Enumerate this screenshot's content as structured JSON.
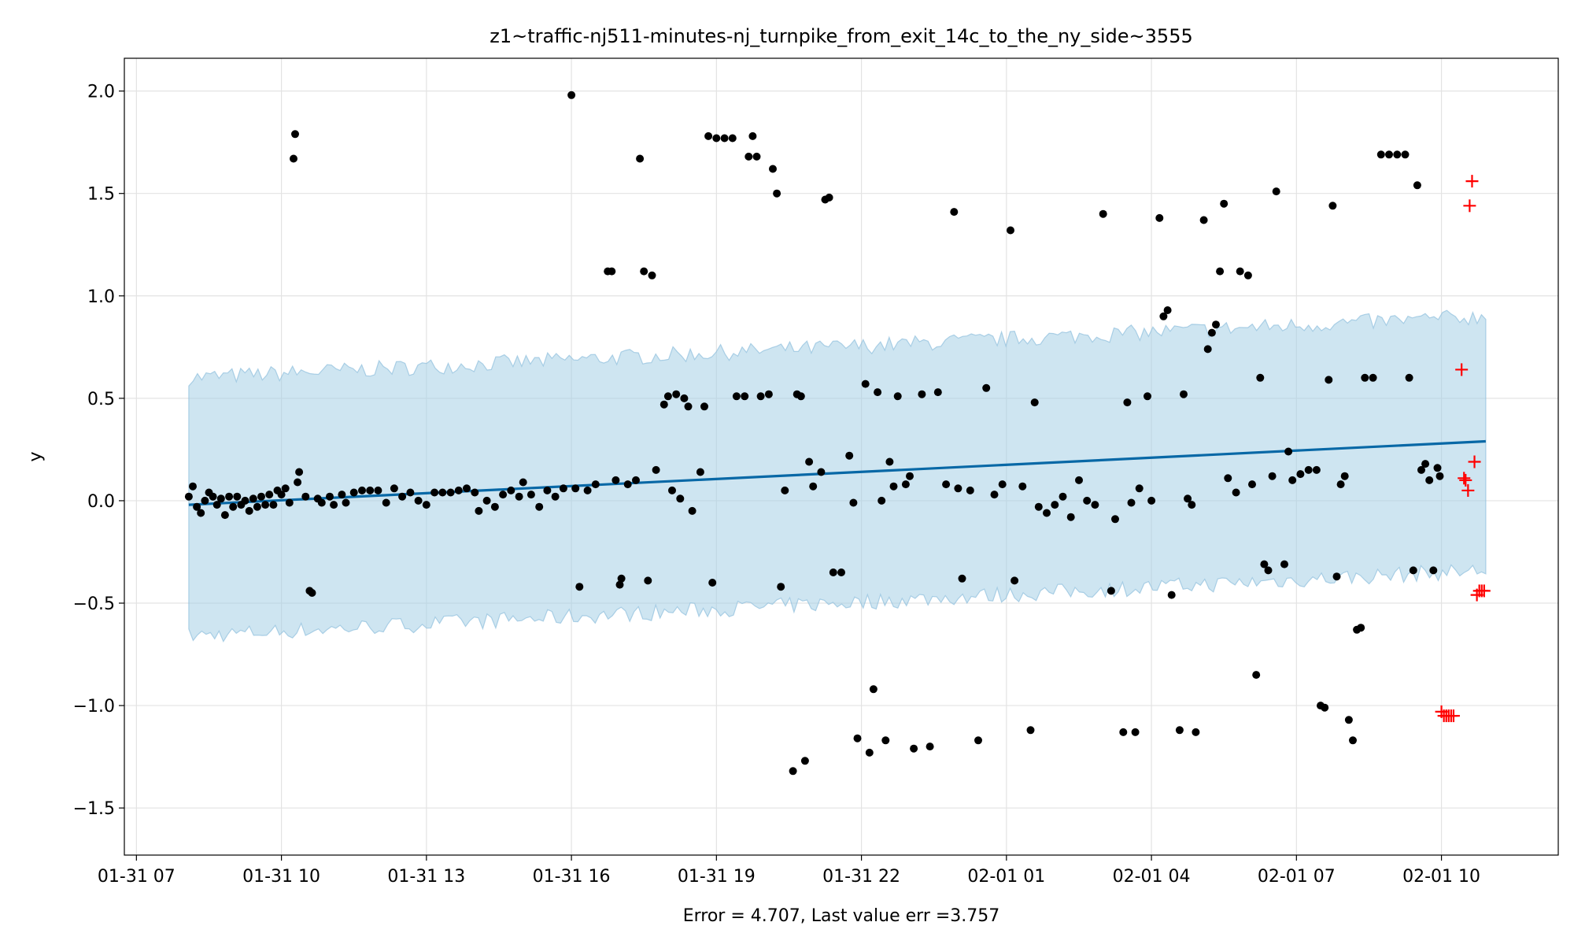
{
  "chart_data": {
    "type": "scatter",
    "title": "z1~traffic-nj511-minutes-nj_turnpike_from_exit_14c_to_the_ny_side~3555",
    "xlabel": "Error = 4.707, Last value err =3.757",
    "ylabel": "y",
    "ylim": [
      -1.73,
      2.16
    ],
    "xlim": [
      "01-31 06:45",
      "02-01 12:25"
    ],
    "grid": true,
    "x_ticks": [
      "01-31 07",
      "01-31 10",
      "01-31 13",
      "01-31 16",
      "01-31 19",
      "01-31 22",
      "02-01 01",
      "02-01 04",
      "02-01 07",
      "02-01 10"
    ],
    "x_tick_times": [
      "01-31 07:00",
      "01-31 10:00",
      "01-31 13:00",
      "01-31 16:00",
      "01-31 19:00",
      "01-31 22:00",
      "02-01 01:00",
      "02-01 04:00",
      "02-01 07:00",
      "02-01 10:00"
    ],
    "y_ticks": [
      2.0,
      1.5,
      1.0,
      0.5,
      0.0,
      -0.5,
      -1.0,
      -1.5
    ],
    "y_tick_labels": [
      "2.0",
      "1.5",
      "1.0",
      "0.5",
      "0.0",
      "−0.5",
      "−1.0",
      "−1.5"
    ],
    "colors": {
      "band": "#a6cfe6",
      "band_edge": "#8fbfdd",
      "trend": "#0868a6",
      "points": "#000000",
      "future": "#ff0000"
    },
    "forecast": {
      "start": "01-31 08:05",
      "end": "02-01 10:55",
      "trend_start": -0.02,
      "trend_end": 0.29,
      "upper_start": 0.6,
      "upper_end": 0.9,
      "lower_start": -0.66,
      "lower_end": -0.34
    },
    "points": [
      [
        "01-31 08:05",
        0.02
      ],
      [
        "01-31 08:10",
        0.07
      ],
      [
        "01-31 08:15",
        -0.03
      ],
      [
        "01-31 08:20",
        -0.06
      ],
      [
        "01-31 08:25",
        0.0
      ],
      [
        "01-31 08:30",
        0.04
      ],
      [
        "01-31 08:35",
        0.02
      ],
      [
        "01-31 08:40",
        -0.02
      ],
      [
        "01-31 08:45",
        0.01
      ],
      [
        "01-31 08:50",
        -0.07
      ],
      [
        "01-31 08:55",
        0.02
      ],
      [
        "01-31 09:00",
        -0.03
      ],
      [
        "01-31 09:05",
        0.02
      ],
      [
        "01-31 09:10",
        -0.02
      ],
      [
        "01-31 09:15",
        0.0
      ],
      [
        "01-31 09:20",
        -0.05
      ],
      [
        "01-31 09:25",
        0.01
      ],
      [
        "01-31 09:30",
        -0.03
      ],
      [
        "01-31 09:35",
        0.02
      ],
      [
        "01-31 09:40",
        -0.02
      ],
      [
        "01-31 09:45",
        0.03
      ],
      [
        "01-31 09:50",
        -0.02
      ],
      [
        "01-31 09:55",
        0.05
      ],
      [
        "01-31 10:00",
        0.03
      ],
      [
        "01-31 10:05",
        0.06
      ],
      [
        "01-31 10:10",
        -0.01
      ],
      [
        "01-31 10:15",
        1.67
      ],
      [
        "01-31 10:17",
        1.79
      ],
      [
        "01-31 10:20",
        0.09
      ],
      [
        "01-31 10:22",
        0.14
      ],
      [
        "01-31 10:30",
        0.02
      ],
      [
        "01-31 10:35",
        -0.44
      ],
      [
        "01-31 10:38",
        -0.45
      ],
      [
        "01-31 10:45",
        0.01
      ],
      [
        "01-31 10:50",
        -0.01
      ],
      [
        "01-31 11:00",
        0.02
      ],
      [
        "01-31 11:05",
        -0.02
      ],
      [
        "01-31 11:15",
        0.03
      ],
      [
        "01-31 11:20",
        -0.01
      ],
      [
        "01-31 11:30",
        0.04
      ],
      [
        "01-31 11:40",
        0.05
      ],
      [
        "01-31 11:50",
        0.05
      ],
      [
        "01-31 12:00",
        0.05
      ],
      [
        "01-31 12:10",
        -0.01
      ],
      [
        "01-31 12:20",
        0.06
      ],
      [
        "01-31 12:30",
        0.02
      ],
      [
        "01-31 12:40",
        0.04
      ],
      [
        "01-31 12:50",
        0.0
      ],
      [
        "01-31 13:00",
        -0.02
      ],
      [
        "01-31 13:10",
        0.04
      ],
      [
        "01-31 13:20",
        0.04
      ],
      [
        "01-31 13:30",
        0.04
      ],
      [
        "01-31 13:40",
        0.05
      ],
      [
        "01-31 13:50",
        0.06
      ],
      [
        "01-31 14:00",
        0.04
      ],
      [
        "01-31 14:05",
        -0.05
      ],
      [
        "01-31 14:15",
        0.0
      ],
      [
        "01-31 14:25",
        -0.03
      ],
      [
        "01-31 14:35",
        0.03
      ],
      [
        "01-31 14:45",
        0.05
      ],
      [
        "01-31 14:55",
        0.02
      ],
      [
        "01-31 15:00",
        0.09
      ],
      [
        "01-31 15:10",
        0.03
      ],
      [
        "01-31 15:20",
        -0.03
      ],
      [
        "01-31 15:30",
        0.05
      ],
      [
        "01-31 15:40",
        0.02
      ],
      [
        "01-31 15:50",
        0.06
      ],
      [
        "01-31 16:00",
        1.98
      ],
      [
        "01-31 16:05",
        0.06
      ],
      [
        "01-31 16:10",
        -0.42
      ],
      [
        "01-31 16:20",
        0.05
      ],
      [
        "01-31 16:30",
        0.08
      ],
      [
        "01-31 16:45",
        1.12
      ],
      [
        "01-31 16:50",
        1.12
      ],
      [
        "01-31 16:55",
        0.1
      ],
      [
        "01-31 17:00",
        -0.41
      ],
      [
        "01-31 17:02",
        -0.38
      ],
      [
        "01-31 17:10",
        0.08
      ],
      [
        "01-31 17:20",
        0.1
      ],
      [
        "01-31 17:25",
        1.67
      ],
      [
        "01-31 17:30",
        1.12
      ],
      [
        "01-31 17:35",
        -0.39
      ],
      [
        "01-31 17:40",
        1.1
      ],
      [
        "01-31 17:45",
        0.15
      ],
      [
        "01-31 17:55",
        0.47
      ],
      [
        "01-31 18:00",
        0.51
      ],
      [
        "01-31 18:05",
        0.05
      ],
      [
        "01-31 18:10",
        0.52
      ],
      [
        "01-31 18:15",
        0.01
      ],
      [
        "01-31 18:20",
        0.5
      ],
      [
        "01-31 18:25",
        0.46
      ],
      [
        "01-31 18:30",
        -0.05
      ],
      [
        "01-31 18:40",
        0.14
      ],
      [
        "01-31 18:45",
        0.46
      ],
      [
        "01-31 18:50",
        1.78
      ],
      [
        "01-31 18:55",
        -0.4
      ],
      [
        "01-31 19:00",
        1.77
      ],
      [
        "01-31 19:10",
        1.77
      ],
      [
        "01-31 19:20",
        1.77
      ],
      [
        "01-31 19:25",
        0.51
      ],
      [
        "01-31 19:35",
        0.51
      ],
      [
        "01-31 19:40",
        1.68
      ],
      [
        "01-31 19:45",
        1.78
      ],
      [
        "01-31 19:50",
        1.68
      ],
      [
        "01-31 19:55",
        0.51
      ],
      [
        "01-31 20:05",
        0.52
      ],
      [
        "01-31 20:10",
        1.62
      ],
      [
        "01-31 20:15",
        1.5
      ],
      [
        "01-31 20:20",
        -0.42
      ],
      [
        "01-31 20:25",
        0.05
      ],
      [
        "01-31 20:35",
        -1.32
      ],
      [
        "01-31 20:40",
        0.52
      ],
      [
        "01-31 20:45",
        0.51
      ],
      [
        "01-31 20:50",
        -1.27
      ],
      [
        "01-31 20:55",
        0.19
      ],
      [
        "01-31 21:00",
        0.07
      ],
      [
        "01-31 21:10",
        0.14
      ],
      [
        "01-31 21:15",
        1.47
      ],
      [
        "01-31 21:20",
        1.48
      ],
      [
        "01-31 21:25",
        -0.35
      ],
      [
        "01-31 21:35",
        -0.35
      ],
      [
        "01-31 21:45",
        0.22
      ],
      [
        "01-31 21:50",
        -0.01
      ],
      [
        "01-31 21:55",
        -1.16
      ],
      [
        "01-31 22:05",
        0.57
      ],
      [
        "01-31 22:10",
        -1.23
      ],
      [
        "01-31 22:15",
        -0.92
      ],
      [
        "01-31 22:20",
        0.53
      ],
      [
        "01-31 22:25",
        0.0
      ],
      [
        "01-31 22:30",
        -1.17
      ],
      [
        "01-31 22:35",
        0.19
      ],
      [
        "01-31 22:40",
        0.07
      ],
      [
        "01-31 22:45",
        0.51
      ],
      [
        "01-31 22:55",
        0.08
      ],
      [
        "01-31 23:00",
        0.12
      ],
      [
        "01-31 23:05",
        -1.21
      ],
      [
        "01-31 23:15",
        0.52
      ],
      [
        "01-31 23:25",
        -1.2
      ],
      [
        "01-31 23:35",
        0.53
      ],
      [
        "01-31 23:45",
        0.08
      ],
      [
        "01-31 23:55",
        1.41
      ],
      [
        "02-01 00:00",
        0.06
      ],
      [
        "02-01 00:05",
        -0.38
      ],
      [
        "02-01 00:15",
        0.05
      ],
      [
        "02-01 00:25",
        -1.17
      ],
      [
        "02-01 00:35",
        0.55
      ],
      [
        "02-01 00:45",
        0.03
      ],
      [
        "02-01 00:55",
        0.08
      ],
      [
        "02-01 01:05",
        1.32
      ],
      [
        "02-01 01:10",
        -0.39
      ],
      [
        "02-01 01:20",
        0.07
      ],
      [
        "02-01 01:30",
        -1.12
      ],
      [
        "02-01 01:35",
        0.48
      ],
      [
        "02-01 01:40",
        -0.03
      ],
      [
        "02-01 01:50",
        -0.06
      ],
      [
        "02-01 02:00",
        -0.02
      ],
      [
        "02-01 02:10",
        0.02
      ],
      [
        "02-01 02:20",
        -0.08
      ],
      [
        "02-01 02:30",
        0.1
      ],
      [
        "02-01 02:40",
        0.0
      ],
      [
        "02-01 02:50",
        -0.02
      ],
      [
        "02-01 03:00",
        1.4
      ],
      [
        "02-01 03:10",
        -0.44
      ],
      [
        "02-01 03:15",
        -0.09
      ],
      [
        "02-01 03:25",
        -1.13
      ],
      [
        "02-01 03:30",
        0.48
      ],
      [
        "02-01 03:35",
        -0.01
      ],
      [
        "02-01 03:40",
        -1.13
      ],
      [
        "02-01 03:45",
        0.06
      ],
      [
        "02-01 03:55",
        0.51
      ],
      [
        "02-01 04:00",
        0.0
      ],
      [
        "02-01 04:10",
        1.38
      ],
      [
        "02-01 04:15",
        0.9
      ],
      [
        "02-01 04:20",
        0.93
      ],
      [
        "02-01 04:25",
        -0.46
      ],
      [
        "02-01 04:35",
        -1.12
      ],
      [
        "02-01 04:40",
        0.52
      ],
      [
        "02-01 04:45",
        0.01
      ],
      [
        "02-01 04:50",
        -0.02
      ],
      [
        "02-01 04:55",
        -1.13
      ],
      [
        "02-01 05:05",
        1.37
      ],
      [
        "02-01 05:10",
        0.74
      ],
      [
        "02-01 05:15",
        0.82
      ],
      [
        "02-01 05:20",
        0.86
      ],
      [
        "02-01 05:25",
        1.12
      ],
      [
        "02-01 05:30",
        1.45
      ],
      [
        "02-01 05:35",
        0.11
      ],
      [
        "02-01 05:45",
        0.04
      ],
      [
        "02-01 05:50",
        1.12
      ],
      [
        "02-01 06:00",
        1.1
      ],
      [
        "02-01 06:05",
        0.08
      ],
      [
        "02-01 06:10",
        -0.85
      ],
      [
        "02-01 06:15",
        0.6
      ],
      [
        "02-01 06:20",
        -0.31
      ],
      [
        "02-01 06:25",
        -0.34
      ],
      [
        "02-01 06:30",
        0.12
      ],
      [
        "02-01 06:35",
        1.51
      ],
      [
        "02-01 06:45",
        -0.31
      ],
      [
        "02-01 06:50",
        0.24
      ],
      [
        "02-01 06:55",
        0.1
      ],
      [
        "02-01 07:05",
        0.13
      ],
      [
        "02-01 07:15",
        0.15
      ],
      [
        "02-01 07:25",
        0.15
      ],
      [
        "02-01 07:30",
        -1.0
      ],
      [
        "02-01 07:35",
        -1.01
      ],
      [
        "02-01 07:40",
        0.59
      ],
      [
        "02-01 07:45",
        1.44
      ],
      [
        "02-01 07:50",
        -0.37
      ],
      [
        "02-01 07:55",
        0.08
      ],
      [
        "02-01 08:00",
        0.12
      ],
      [
        "02-01 08:05",
        -1.07
      ],
      [
        "02-01 08:10",
        -1.17
      ],
      [
        "02-01 08:15",
        -0.63
      ],
      [
        "02-01 08:20",
        -0.62
      ],
      [
        "02-01 08:25",
        0.6
      ],
      [
        "02-01 08:35",
        0.6
      ],
      [
        "02-01 08:45",
        1.69
      ],
      [
        "02-01 08:55",
        1.69
      ],
      [
        "02-01 09:05",
        1.69
      ],
      [
        "02-01 09:15",
        1.69
      ],
      [
        "02-01 09:20",
        0.6
      ],
      [
        "02-01 09:25",
        -0.34
      ],
      [
        "02-01 09:30",
        1.54
      ],
      [
        "02-01 09:35",
        0.15
      ],
      [
        "02-01 09:40",
        0.18
      ],
      [
        "02-01 09:45",
        0.1
      ],
      [
        "02-01 09:50",
        -0.34
      ],
      [
        "02-01 09:55",
        0.16
      ],
      [
        "02-01 09:58",
        0.12
      ]
    ],
    "future_points": [
      [
        "02-01 10:00",
        -1.03
      ],
      [
        "02-01 10:03",
        -1.05
      ],
      [
        "02-01 10:06",
        -1.05
      ],
      [
        "02-01 10:09",
        -1.05
      ],
      [
        "02-01 10:12",
        -1.05
      ],
      [
        "02-01 10:15",
        -1.05
      ],
      [
        "02-01 10:25",
        0.64
      ],
      [
        "02-01 10:28",
        0.11
      ],
      [
        "02-01 10:30",
        0.1
      ],
      [
        "02-01 10:33",
        0.05
      ],
      [
        "02-01 10:35",
        1.44
      ],
      [
        "02-01 10:38",
        1.56
      ],
      [
        "02-01 10:41",
        0.19
      ],
      [
        "02-01 10:44",
        -0.46
      ],
      [
        "02-01 10:47",
        -0.44
      ],
      [
        "02-01 10:50",
        -0.44
      ],
      [
        "02-01 10:53",
        -0.44
      ]
    ]
  }
}
